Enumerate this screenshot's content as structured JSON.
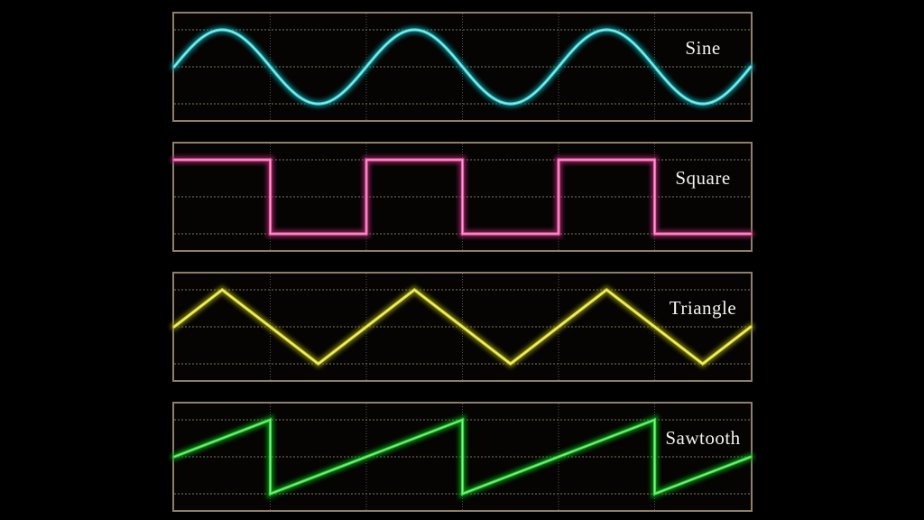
{
  "page": {
    "background_color": "#000000",
    "panel_border_color": "#8d7f68",
    "grid_horizontal_color": "#7d775f",
    "grid_vertical_color": "#55534a",
    "label_color": "#f2f2f2"
  },
  "chart_data": [
    {
      "type": "line",
      "wave": "sine",
      "title": "Sine",
      "legend_position": "right-inside",
      "cycles": 3,
      "amplitude_norm": 1,
      "phase": "starts at zero crossing, rising",
      "x_range_norm": [
        0,
        1
      ],
      "y_range_norm": [
        -1,
        1
      ],
      "axes_visible": false,
      "grid": {
        "h_lines_at_y": [
          1,
          0,
          -1
        ],
        "v_divisions": 6,
        "style": "dotted"
      },
      "color_core": "#3ed6d6",
      "color_bright": "#9ff0ee",
      "color_glow": "#0e8f96",
      "points": null
    },
    {
      "type": "line",
      "wave": "square",
      "title": "Square",
      "legend_position": "right-inside",
      "cycles": 3,
      "amplitude_norm": 1,
      "duty_cycle": 0.5,
      "phase": "starts high",
      "x_range_norm": [
        0,
        1
      ],
      "y_range_norm": [
        -1,
        1
      ],
      "axes_visible": false,
      "grid": {
        "h_lines_at_y": [
          1,
          0,
          -1
        ],
        "v_divisions": 6,
        "style": "dotted"
      },
      "color_core": "#e85aa8",
      "color_bright": "#ffaad4",
      "color_glow": "#a02568",
      "points": [
        [
          0,
          1
        ],
        [
          0.16667,
          1
        ],
        [
          0.16667,
          -1
        ],
        [
          0.33333,
          -1
        ],
        [
          0.33333,
          1
        ],
        [
          0.5,
          1
        ],
        [
          0.5,
          -1
        ],
        [
          0.66667,
          -1
        ],
        [
          0.66667,
          1
        ],
        [
          0.83333,
          1
        ],
        [
          0.83333,
          -1
        ],
        [
          1,
          -1
        ]
      ]
    },
    {
      "type": "line",
      "wave": "triangle",
      "title": "Triangle",
      "legend_position": "right-inside",
      "cycles": 3,
      "amplitude_norm": 1,
      "phase": "starts at zero crossing, rising",
      "x_range_norm": [
        0,
        1
      ],
      "y_range_norm": [
        -1,
        1
      ],
      "axes_visible": false,
      "grid": {
        "h_lines_at_y": [
          1,
          0,
          -1
        ],
        "v_divisions": 6,
        "style": "dotted"
      },
      "color_core": "#d9d92e",
      "color_bright": "#f5f58a",
      "color_glow": "#8f8f10",
      "points": [
        [
          0,
          0
        ],
        [
          0.08333,
          1
        ],
        [
          0.25,
          -1
        ],
        [
          0.41667,
          1
        ],
        [
          0.58333,
          -1
        ],
        [
          0.75,
          1
        ],
        [
          0.91667,
          -1
        ],
        [
          1,
          0
        ]
      ]
    },
    {
      "type": "line",
      "wave": "sawtooth",
      "title": "Sawtooth",
      "legend_position": "right-inside",
      "cycles": 3,
      "amplitude_norm": 1,
      "phase": "starts at zero crossing, rising ramp",
      "x_range_norm": [
        0,
        1
      ],
      "y_range_norm": [
        -1,
        1
      ],
      "axes_visible": false,
      "grid": {
        "h_lines_at_y": [
          1,
          0,
          -1
        ],
        "v_divisions": 6,
        "style": "dotted"
      },
      "color_core": "#2fd63a",
      "color_bright": "#90f59a",
      "color_glow": "#0f9c18",
      "points": [
        [
          0,
          0
        ],
        [
          0.16667,
          1
        ],
        [
          0.16667,
          -1
        ],
        [
          0.5,
          1
        ],
        [
          0.5,
          -1
        ],
        [
          0.83333,
          1
        ],
        [
          0.83333,
          -1
        ],
        [
          1,
          0
        ]
      ]
    }
  ]
}
